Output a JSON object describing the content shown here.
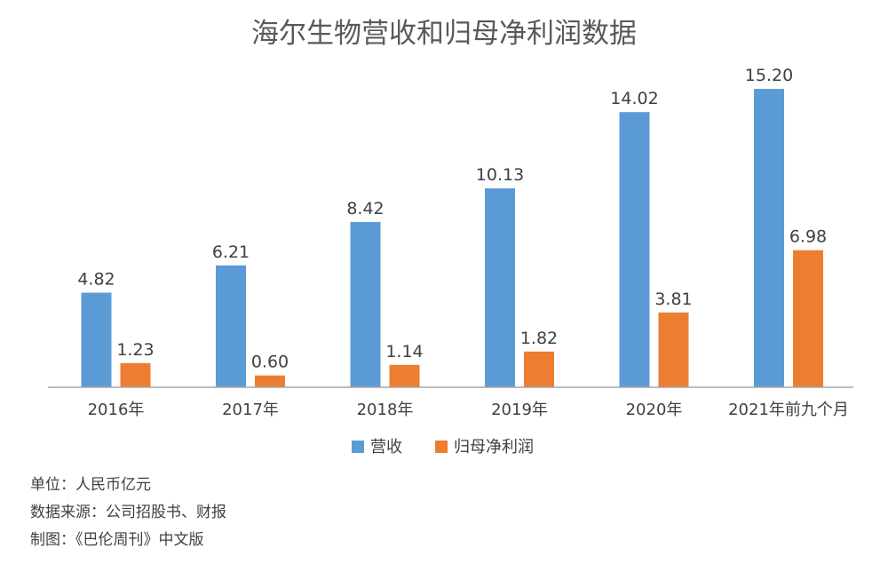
{
  "chart_data": {
    "type": "bar",
    "title": "海尔生物营收和归母净利润数据",
    "xlabel": "",
    "ylabel": "",
    "ylim": [
      0,
      16
    ],
    "grid": false,
    "legend_position": "bottom-center",
    "categories": [
      "2016年",
      "2017年",
      "2018年",
      "2019年",
      "2020年",
      "2021年前九个月"
    ],
    "series": [
      {
        "name": "营收",
        "color": "#5B9BD5",
        "values": [
          4.82,
          6.21,
          8.42,
          10.13,
          14.02,
          15.2
        ],
        "labels": [
          "4.82",
          "6.21",
          "8.42",
          "10.13",
          "14.02",
          "15.20"
        ]
      },
      {
        "name": "归母净利润",
        "color": "#ED7D31",
        "values": [
          1.23,
          0.6,
          1.14,
          1.82,
          3.81,
          6.98
        ],
        "labels": [
          "1.23",
          "0.60",
          "1.14",
          "1.82",
          "3.81",
          "6.98"
        ]
      }
    ]
  },
  "footer": {
    "unit": "单位：人民币亿元",
    "source": "数据来源：公司招股书、财报",
    "credit": "制图：《巴伦周刊》中文版"
  }
}
